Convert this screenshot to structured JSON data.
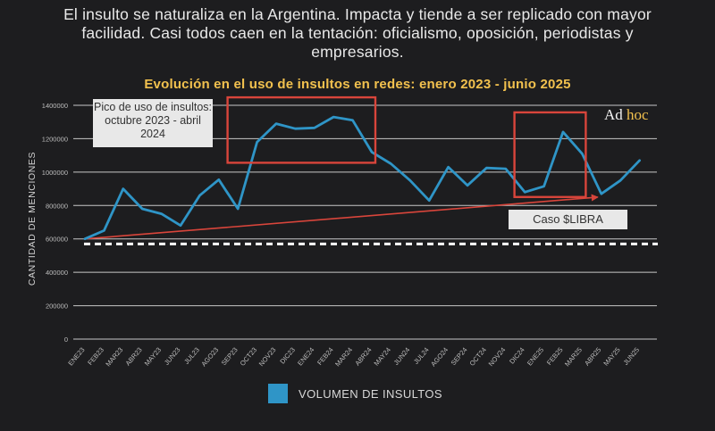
{
  "headline": "El insulto se naturaliza en la Argentina. Impacta y tiende a ser replicado con mayor facilidad. Casi todos caen en la tentación: oficialismo, oposición, periodistas y empresarios.",
  "logo": {
    "part1": "Ad",
    "part2": "hoc"
  },
  "annotations": {
    "peak": "Pico de uso de insultos: octubre 2023 - abril 2024",
    "libra": "Caso $LIBRA"
  },
  "colors": {
    "line": "#2f95c7",
    "trend": "#d9453b",
    "highlight": "#d9453b",
    "title": "#f2c14e",
    "grid": "#e6e6e6",
    "reference": "#ffffff"
  },
  "chart_data": {
    "type": "line",
    "title": "Evolución en el uso de insultos en redes: enero 2023 - junio 2025",
    "ylabel": "CANTIDAD DE MENCIONES",
    "ylim": [
      0,
      1400000
    ],
    "yticks": [
      0,
      200000,
      400000,
      600000,
      800000,
      1000000,
      1200000,
      1400000
    ],
    "ytick_labels": [
      "0",
      "200000",
      "400000",
      "600000",
      "800000",
      "1000000",
      "1200000",
      "1400000"
    ],
    "grid": true,
    "categories": [
      "ENE23",
      "FEB23",
      "MAR23",
      "ABR23",
      "MAY23",
      "JUN23",
      "JUL23",
      "AGO23",
      "SEP23",
      "OCT23",
      "NOV23",
      "DIC23",
      "ENE24",
      "FEB24",
      "MAR24",
      "ABR24",
      "MAY24",
      "JUN24",
      "JUL24",
      "AGO24",
      "SEP24",
      "OCT24",
      "NOV24",
      "DIC24",
      "ENE25",
      "FEB25",
      "MAR25",
      "ABR25",
      "MAY25",
      "JUN25"
    ],
    "series": [
      {
        "name": "VOLUMEN DE INSULTOS",
        "values": [
          600000,
          650000,
          900000,
          780000,
          750000,
          680000,
          860000,
          955000,
          780000,
          1180000,
          1290000,
          1260000,
          1265000,
          1330000,
          1310000,
          1120000,
          1050000,
          950000,
          830000,
          1030000,
          920000,
          1025000,
          1020000,
          880000,
          915000,
          1240000,
          1110000,
          870000,
          950000,
          1070000
        ]
      }
    ],
    "reference_line": {
      "y": 570000,
      "style": "dashed"
    },
    "trend_arrow": {
      "from": [
        "ENE23",
        600000
      ],
      "to": [
        "ABR25",
        850000
      ]
    },
    "highlights": [
      {
        "from": "OCT23",
        "to": "ABR24"
      },
      {
        "from": "ENE25",
        "to": "MAR25"
      }
    ]
  }
}
